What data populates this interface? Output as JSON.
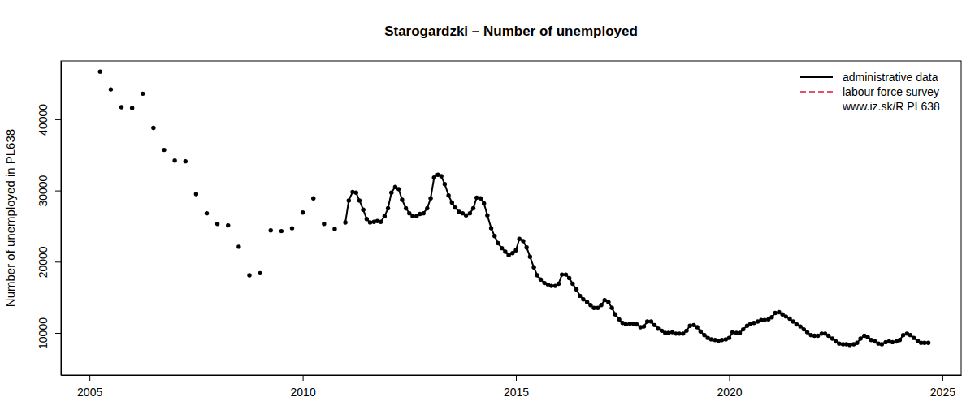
{
  "chart_data": {
    "type": "line",
    "title": "Starogardzki – Number of unemployed",
    "y_label": "Number of unemployed in PL638",
    "annotation": "www.iz.sk/R PL638",
    "legend": "topright",
    "grid": false,
    "xlim": [
      2004.33,
      2025.44
    ],
    "ylim": [
      4070,
      48200
    ],
    "xticks": [
      2005,
      2010,
      2015,
      2020,
      2025
    ],
    "yticks": [
      10000,
      20000,
      30000,
      40000
    ],
    "x": [
      2005.25,
      2005.33,
      2005.5,
      2005.58,
      2005.75,
      2005.83,
      2006,
      2006.08,
      2006.25,
      2006.33,
      2006.5,
      2006.58,
      2006.75,
      2006.83,
      2007,
      2007.08,
      2007.25,
      2007.33,
      2007.5,
      2007.58,
      2007.75,
      2007.83,
      2008,
      2008.08,
      2008.25,
      2008.33,
      2008.5,
      2008.58,
      2008.75,
      2008.83,
      2009,
      2009.08,
      2009.25,
      2009.33,
      2009.5,
      2009.58,
      2009.75,
      2009.83,
      2010,
      2010.08,
      2010.25,
      2010.33,
      2010.5,
      2010.58,
      2010.75,
      2010.83,
      2011,
      2011.08,
      2011.17,
      2011.25,
      2011.33,
      2011.42,
      2011.5,
      2011.58,
      2011.67,
      2011.75,
      2011.83,
      2011.92,
      2012,
      2012.08,
      2012.17,
      2012.25,
      2012.33,
      2012.42,
      2012.5,
      2012.58,
      2012.67,
      2012.75,
      2012.83,
      2012.92,
      2013,
      2013.08,
      2013.17,
      2013.25,
      2013.33,
      2013.42,
      2013.5,
      2013.58,
      2013.67,
      2013.75,
      2013.83,
      2013.92,
      2014,
      2014.08,
      2014.17,
      2014.25,
      2014.33,
      2014.42,
      2014.5,
      2014.58,
      2014.67,
      2014.75,
      2014.83,
      2014.92,
      2015,
      2015.08,
      2015.17,
      2015.25,
      2015.33,
      2015.42,
      2015.5,
      2015.58,
      2015.67,
      2015.75,
      2015.83,
      2015.92,
      2016,
      2016.08,
      2016.17,
      2016.25,
      2016.33,
      2016.42,
      2016.5,
      2016.58,
      2016.67,
      2016.75,
      2016.83,
      2016.92,
      2017,
      2017.08,
      2017.17,
      2017.25,
      2017.33,
      2017.42,
      2017.5,
      2017.58,
      2017.67,
      2017.75,
      2017.83,
      2017.92,
      2018,
      2018.08,
      2018.17,
      2018.25,
      2018.33,
      2018.42,
      2018.5,
      2018.58,
      2018.67,
      2018.75,
      2018.83,
      2018.92,
      2019,
      2019.08,
      2019.17,
      2019.25,
      2019.33,
      2019.42,
      2019.5,
      2019.58,
      2019.67,
      2019.75,
      2019.83,
      2019.92,
      2020,
      2020.08,
      2020.17,
      2020.25,
      2020.33,
      2020.42,
      2020.5,
      2020.58,
      2020.67,
      2020.75,
      2020.83,
      2020.92,
      2021,
      2021.08,
      2021.17,
      2021.25,
      2021.33,
      2021.42,
      2021.5,
      2021.58,
      2021.67,
      2021.75,
      2021.83,
      2021.92,
      2022,
      2022.08,
      2022.17,
      2022.25,
      2022.33,
      2022.42,
      2022.5,
      2022.58,
      2022.67,
      2022.75,
      2022.83,
      2022.92,
      2023,
      2023.08,
      2023.17,
      2023.25,
      2023.33,
      2023.42,
      2023.5,
      2023.58,
      2023.67,
      2023.75,
      2023.83,
      2023.92,
      2024,
      2024.08,
      2024.17,
      2024.25,
      2024.33,
      2024.42,
      2024.5,
      2024.58,
      2024.67
    ],
    "series": [
      {
        "name": "administrative data",
        "color": "#000000",
        "line_style": "solid",
        "marker": "circle",
        "values": [
          46700,
          null,
          44200,
          null,
          41700,
          null,
          41600,
          null,
          43600,
          null,
          38800,
          null,
          35700,
          null,
          34200,
          null,
          34100,
          null,
          29500,
          null,
          26800,
          null,
          25300,
          null,
          25100,
          null,
          22100,
          null,
          18100,
          null,
          18400,
          null,
          24400,
          null,
          24300,
          null,
          24700,
          null,
          26900,
          null,
          28900,
          null,
          25300,
          null,
          24600,
          null,
          25500,
          28600,
          29800,
          29700,
          28600,
          27300,
          26000,
          25500,
          25600,
          25700,
          25600,
          26400,
          27500,
          29700,
          30500,
          30200,
          28700,
          27500,
          26800,
          26400,
          26400,
          26700,
          26800,
          27500,
          28900,
          31800,
          32200,
          32000,
          30900,
          29300,
          28300,
          27600,
          27000,
          26800,
          26500,
          26800,
          27500,
          29000,
          28900,
          28200,
          26500,
          24700,
          23600,
          22600,
          21900,
          21400,
          20900,
          21200,
          21600,
          23200,
          22900,
          22000,
          20700,
          19200,
          18100,
          17500,
          17000,
          16800,
          16600,
          16600,
          16900,
          18200,
          18200,
          17700,
          16900,
          16100,
          15200,
          14700,
          14300,
          13900,
          13500,
          13500,
          13900,
          14600,
          14300,
          13500,
          12600,
          11900,
          11400,
          11200,
          11300,
          11300,
          11200,
          10800,
          10900,
          11600,
          11600,
          11100,
          10600,
          10300,
          10000,
          10000,
          10100,
          9900,
          9900,
          9900,
          10300,
          11000,
          11100,
          10800,
          10200,
          9700,
          9300,
          9100,
          9000,
          8900,
          9000,
          9100,
          9300,
          10100,
          10000,
          10000,
          10500,
          11000,
          11300,
          11400,
          11600,
          11800,
          11800,
          11900,
          12200,
          12800,
          12900,
          12600,
          12300,
          12000,
          11600,
          11200,
          10900,
          10500,
          10100,
          9700,
          9600,
          9600,
          9900,
          9900,
          9600,
          9200,
          8800,
          8500,
          8400,
          8400,
          8300,
          8400,
          8600,
          9200,
          9600,
          9400,
          9000,
          8800,
          8500,
          8400,
          8700,
          8800,
          8700,
          8800,
          9000,
          9700,
          9900,
          9700,
          9300,
          8900,
          8600,
          8600,
          8600
        ]
      },
      {
        "name": "labour force survey",
        "color": "#df536b",
        "line_style": "dashed",
        "values": [
          null,
          null,
          null,
          null,
          null,
          null,
          null,
          null,
          null,
          null,
          null,
          null,
          null,
          null,
          null,
          null,
          null,
          null,
          null,
          null,
          null,
          null,
          null,
          null,
          null,
          null,
          null,
          null,
          null,
          null,
          null,
          null,
          null,
          null,
          null,
          null,
          null,
          null,
          null,
          null,
          null,
          null,
          null,
          null,
          null,
          null,
          null,
          null,
          null,
          null,
          null,
          null,
          null,
          null,
          null,
          null,
          null,
          null,
          null,
          null,
          null,
          null,
          null,
          null,
          null,
          null,
          null,
          null,
          null,
          null,
          null,
          null,
          null,
          null,
          null,
          null,
          null,
          null,
          null,
          null,
          null,
          null,
          null,
          null,
          null,
          null,
          null,
          null,
          null,
          null,
          null,
          null,
          null,
          null,
          null,
          null,
          null,
          null,
          null,
          null,
          null,
          null,
          null,
          null,
          null,
          null,
          null,
          null,
          null,
          null,
          null,
          null,
          null,
          null,
          null,
          null,
          null,
          null,
          null,
          null,
          null,
          null,
          null,
          null,
          null,
          null,
          null,
          null,
          null,
          null,
          null,
          null,
          null,
          null,
          null,
          null,
          null,
          null,
          null,
          null,
          null,
          null,
          null,
          null,
          null,
          null,
          null,
          null,
          null,
          null,
          null,
          null,
          null,
          null,
          null,
          null,
          null,
          null,
          null,
          null,
          null,
          null,
          null,
          null,
          null,
          null,
          null,
          null,
          null,
          null,
          null,
          null,
          null,
          null,
          null,
          null,
          null,
          null,
          null,
          null,
          null,
          null,
          null,
          null,
          null,
          null,
          null,
          null,
          null,
          null,
          null,
          null,
          null,
          null,
          null,
          null,
          null,
          null,
          null,
          null,
          null,
          null,
          null,
          null,
          null,
          null,
          null,
          null,
          null,
          null,
          null
        ]
      }
    ]
  }
}
